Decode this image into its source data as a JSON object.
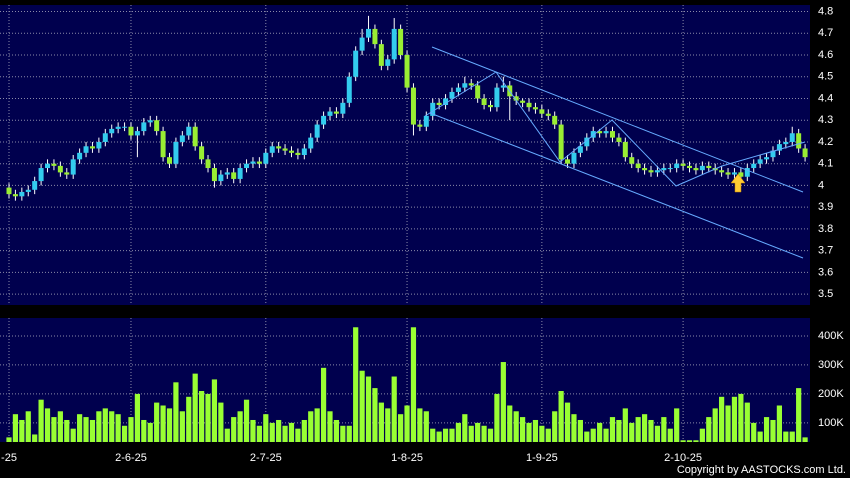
{
  "chart_data": [
    {
      "type": "candlestick",
      "open": [
        3.99,
        3.96,
        3.95,
        3.97,
        3.98,
        4.02,
        4.08,
        4.1,
        4.09,
        4.06,
        4.05,
        4.12,
        4.15,
        4.18,
        4.17,
        4.2,
        4.24,
        4.26,
        4.27,
        4.27,
        4.23,
        4.25,
        4.29,
        4.3,
        4.25,
        4.13,
        4.1,
        4.2,
        4.23,
        4.27,
        4.18,
        4.12,
        4.08,
        4.02,
        4.05,
        4.06,
        4.03,
        4.08,
        4.1,
        4.11,
        4.1,
        4.15,
        4.18,
        4.17,
        4.16,
        4.15,
        4.14,
        4.17,
        4.22,
        4.28,
        4.32,
        4.34,
        4.33,
        4.38,
        4.5,
        4.62,
        4.68,
        4.72,
        4.65,
        4.55,
        4.58,
        4.72,
        4.6,
        4.45,
        4.28,
        4.27,
        4.32,
        4.38,
        4.37,
        4.4,
        4.43,
        4.45,
        4.47,
        4.46,
        4.4,
        4.37,
        4.36,
        4.45,
        4.46,
        4.41,
        4.39,
        4.38,
        4.36,
        4.35,
        4.33,
        4.32,
        4.28,
        4.12,
        4.1,
        4.15,
        4.18,
        4.22,
        4.25,
        4.24,
        4.25,
        4.22,
        4.2,
        4.13,
        4.1,
        4.08,
        4.07,
        4.06,
        4.07,
        4.08,
        4.08,
        4.1,
        4.09,
        4.08,
        4.07,
        4.09,
        4.08,
        4.07,
        4.06,
        4.05,
        4.06,
        4.04,
        4.08,
        4.1,
        4.12,
        4.13,
        4.16,
        4.19,
        4.2,
        4.24,
        4.17
      ],
      "high": [
        4.01,
        3.98,
        3.99,
        4.0,
        4.04,
        4.1,
        4.12,
        4.12,
        4.11,
        4.08,
        4.14,
        4.17,
        4.2,
        4.2,
        4.22,
        4.26,
        4.28,
        4.29,
        4.29,
        4.29,
        4.27,
        4.31,
        4.32,
        4.32,
        4.27,
        4.15,
        4.22,
        4.25,
        4.29,
        4.29,
        4.2,
        4.14,
        4.1,
        4.07,
        4.08,
        4.08,
        4.1,
        4.12,
        4.13,
        4.13,
        4.17,
        4.2,
        4.2,
        4.19,
        4.18,
        4.17,
        4.19,
        4.24,
        4.3,
        4.34,
        4.36,
        4.36,
        4.4,
        4.52,
        4.64,
        4.72,
        4.78,
        4.74,
        4.67,
        4.6,
        4.77,
        4.74,
        4.62,
        4.47,
        4.3,
        4.34,
        4.4,
        4.4,
        4.42,
        4.45,
        4.47,
        4.5,
        4.49,
        4.48,
        4.42,
        4.39,
        4.47,
        4.5,
        4.48,
        4.43,
        4.4,
        4.4,
        4.38,
        4.37,
        4.35,
        4.34,
        4.3,
        4.14,
        4.17,
        4.2,
        4.24,
        4.27,
        4.26,
        4.27,
        4.27,
        4.24,
        4.22,
        4.15,
        4.12,
        4.1,
        4.09,
        4.09,
        4.1,
        4.1,
        4.12,
        4.12,
        4.11,
        4.1,
        4.11,
        4.11,
        4.1,
        4.09,
        4.08,
        4.08,
        4.08,
        4.1,
        4.12,
        4.14,
        4.15,
        4.18,
        4.21,
        4.22,
        4.27,
        4.26,
        4.19
      ],
      "low": [
        3.94,
        3.93,
        3.93,
        3.95,
        3.96,
        4.0,
        4.06,
        4.07,
        4.04,
        4.03,
        4.03,
        4.1,
        4.13,
        4.15,
        4.15,
        4.18,
        4.22,
        4.24,
        4.25,
        4.21,
        4.13,
        4.23,
        4.27,
        4.23,
        4.11,
        4.08,
        4.08,
        4.18,
        4.21,
        4.16,
        4.1,
        4.06,
        3.99,
        4.0,
        4.03,
        4.01,
        4.01,
        4.06,
        4.08,
        4.08,
        4.08,
        4.13,
        4.15,
        4.14,
        4.13,
        4.12,
        4.12,
        4.15,
        4.2,
        4.26,
        4.3,
        4.31,
        4.31,
        4.36,
        4.48,
        4.6,
        4.66,
        4.63,
        4.53,
        4.53,
        4.56,
        4.58,
        4.43,
        4.23,
        4.25,
        4.25,
        4.3,
        4.35,
        4.35,
        4.38,
        4.41,
        4.43,
        4.44,
        4.38,
        4.35,
        4.34,
        4.34,
        4.43,
        4.3,
        4.37,
        4.36,
        4.34,
        4.33,
        4.31,
        4.3,
        4.26,
        4.1,
        4.08,
        4.08,
        4.13,
        4.16,
        4.2,
        4.22,
        4.22,
        4.2,
        4.18,
        4.11,
        4.08,
        4.06,
        4.05,
        4.04,
        4.04,
        4.05,
        4.06,
        4.06,
        4.07,
        4.06,
        4.05,
        4.05,
        4.06,
        4.05,
        4.04,
        4.03,
        4.03,
        4.02,
        4.02,
        4.06,
        4.08,
        4.1,
        4.11,
        4.14,
        4.17,
        4.18,
        4.15,
        4.11
      ],
      "close": [
        3.96,
        3.95,
        3.97,
        3.98,
        4.02,
        4.08,
        4.1,
        4.09,
        4.06,
        4.05,
        4.12,
        4.15,
        4.18,
        4.17,
        4.2,
        4.24,
        4.26,
        4.27,
        4.27,
        4.23,
        4.25,
        4.29,
        4.3,
        4.25,
        4.13,
        4.1,
        4.2,
        4.23,
        4.27,
        4.18,
        4.12,
        4.08,
        4.02,
        4.05,
        4.06,
        4.03,
        4.08,
        4.1,
        4.11,
        4.1,
        4.15,
        4.18,
        4.17,
        4.16,
        4.15,
        4.14,
        4.17,
        4.22,
        4.28,
        4.32,
        4.34,
        4.33,
        4.38,
        4.5,
        4.62,
        4.68,
        4.72,
        4.65,
        4.55,
        4.58,
        4.72,
        4.6,
        4.45,
        4.28,
        4.27,
        4.32,
        4.38,
        4.37,
        4.4,
        4.43,
        4.45,
        4.47,
        4.46,
        4.4,
        4.37,
        4.36,
        4.45,
        4.46,
        4.41,
        4.39,
        4.38,
        4.36,
        4.35,
        4.33,
        4.32,
        4.28,
        4.12,
        4.1,
        4.15,
        4.18,
        4.22,
        4.25,
        4.24,
        4.25,
        4.22,
        4.2,
        4.13,
        4.1,
        4.08,
        4.07,
        4.06,
        4.07,
        4.08,
        4.08,
        4.1,
        4.09,
        4.08,
        4.07,
        4.09,
        4.08,
        4.07,
        4.06,
        4.05,
        4.06,
        4.04,
        4.08,
        4.1,
        4.12,
        4.13,
        4.16,
        4.19,
        4.2,
        4.24,
        4.17,
        4.13
      ],
      "up_color": "#33ccee",
      "down_color": "#99ee33",
      "ylim": [
        3.45,
        4.83
      ],
      "yticks": [
        3.5,
        3.6,
        3.7,
        3.8,
        3.9,
        4,
        4.1,
        4.2,
        4.3,
        4.4,
        4.5,
        4.6,
        4.7,
        4.8
      ],
      "xticks": [
        {
          "value": 0,
          "label": "-25"
        },
        {
          "value": 19,
          "label": "2-6-25"
        },
        {
          "value": 40,
          "label": "2-7-25"
        },
        {
          "value": 62,
          "label": "1-8-25"
        },
        {
          "value": 83,
          "label": "1-9-25"
        },
        {
          "value": 105,
          "label": "2-10-25"
        }
      ],
      "grid": true
    },
    {
      "type": "bar",
      "values": [
        50000,
        130000,
        110000,
        140000,
        60000,
        180000,
        150000,
        120000,
        140000,
        110000,
        80000,
        130000,
        120000,
        110000,
        140000,
        150000,
        140000,
        130000,
        90000,
        120000,
        200000,
        110000,
        100000,
        170000,
        160000,
        150000,
        240000,
        140000,
        190000,
        270000,
        210000,
        200000,
        250000,
        170000,
        80000,
        120000,
        140000,
        180000,
        110000,
        90000,
        130000,
        100000,
        110000,
        90000,
        100000,
        80000,
        110000,
        140000,
        150000,
        290000,
        140000,
        110000,
        90000,
        90000,
        430000,
        280000,
        260000,
        220000,
        170000,
        150000,
        260000,
        130000,
        160000,
        430000,
        150000,
        140000,
        80000,
        70000,
        80000,
        80000,
        100000,
        130000,
        90000,
        100000,
        90000,
        80000,
        200000,
        310000,
        160000,
        140000,
        120000,
        100000,
        110000,
        90000,
        80000,
        140000,
        210000,
        170000,
        130000,
        110000,
        70000,
        80000,
        100000,
        80000,
        120000,
        110000,
        150000,
        100000,
        120000,
        130000,
        110000,
        90000,
        120000,
        80000,
        150000,
        40000,
        40000,
        40000,
        80000,
        120000,
        150000,
        190000,
        160000,
        190000,
        200000,
        170000,
        100000,
        70000,
        120000,
        110000,
        160000,
        70000,
        70000,
        220000,
        50000
      ],
      "color": "#99ff33",
      "ylim": [
        34000,
        462000
      ],
      "yticks": [
        {
          "value": 100000,
          "label": "100K"
        },
        {
          "value": 200000,
          "label": "200K"
        },
        {
          "value": 300000,
          "label": "300K"
        },
        {
          "value": 400000,
          "label": "400K"
        }
      ],
      "grid": true
    }
  ],
  "copyright": "Copyright by AASTOCKS.com Ltd."
}
